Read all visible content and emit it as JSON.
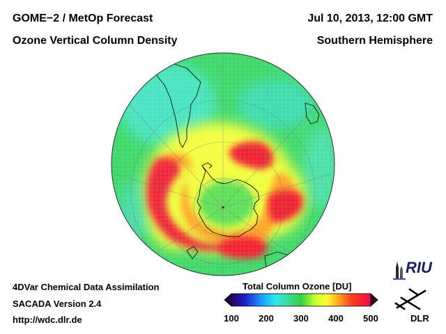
{
  "header": {
    "title_line1": "GOME−2 / MetOp Forecast",
    "title_line2": "Ozone Vertical Column Density",
    "date": "Jul 10, 2013, 12:00 GMT",
    "region": "Southern Hemisphere"
  },
  "footer": {
    "line1": "4DVar Chemical Data Assimilation",
    "line2": "SACADA Version 2.4",
    "line3": "http://wdc.dlr.de"
  },
  "colorbar": {
    "title": "Total Column Ozone [DU]",
    "ticks": [
      "100",
      "200",
      "300",
      "400",
      "500"
    ],
    "range": [
      100,
      500
    ],
    "unit": "DU",
    "colors": [
      "#2a0060",
      "#1f20c8",
      "#1aa0ff",
      "#30e8e8",
      "#40d890",
      "#30d040",
      "#c8ff30",
      "#ffff30",
      "#ffb020",
      "#ff4020",
      "#ff2030",
      "#e01050"
    ]
  },
  "logos": {
    "riu": "RIU",
    "dlr": "DLR"
  },
  "map": {
    "projection": "polar-orthographic",
    "hemisphere": "south",
    "colors": {
      "background": "#40d860",
      "teal": "#40e0b8",
      "yellow": "#f0ff40",
      "orange": "#ffb020",
      "red": "#f02030",
      "pole": "#60e058"
    }
  }
}
